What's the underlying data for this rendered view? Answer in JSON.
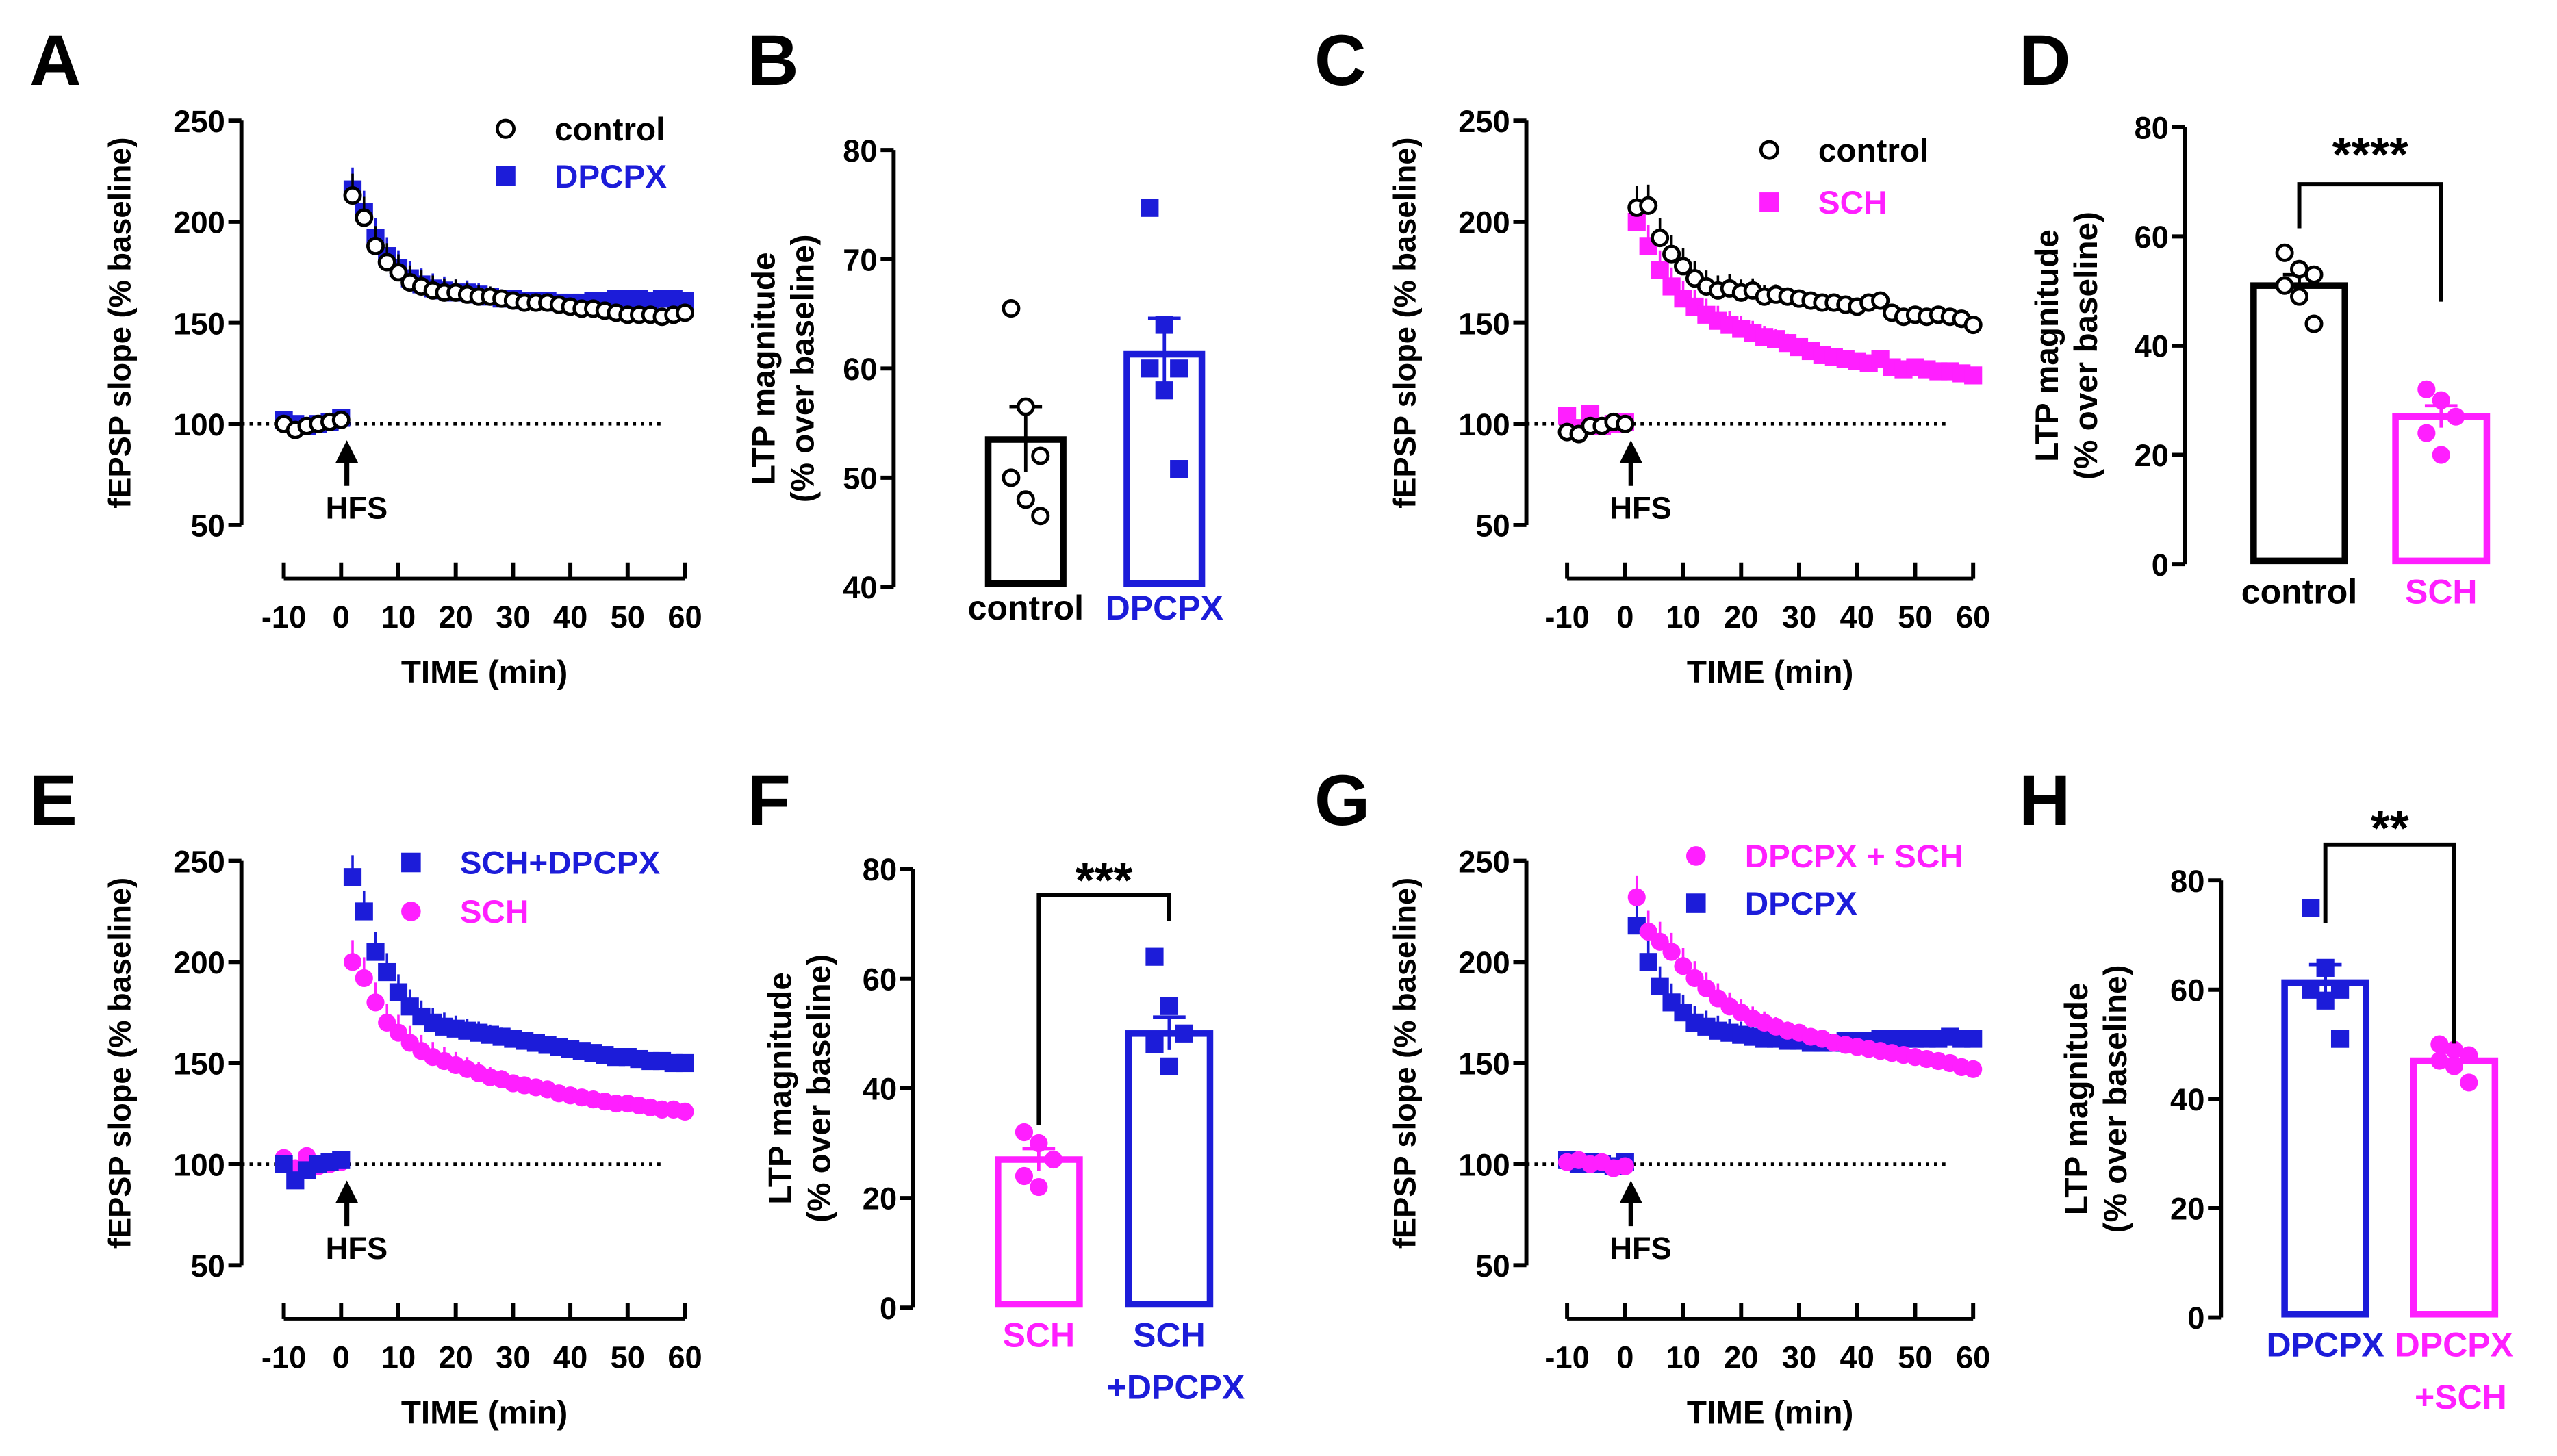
{
  "colors": {
    "black": "#000000",
    "blue": "#1c1cd9",
    "magenta": "#ff1fff"
  },
  "chart_data": [
    {
      "panel": "A",
      "type": "scatter",
      "ylabel": "fEPSP slope (% baseline)",
      "xlabel": "TIME (min)",
      "ylim": [
        50,
        250
      ],
      "yticks": [
        50,
        100,
        150,
        200,
        250
      ],
      "xlim": [
        -10,
        60
      ],
      "xticks": [
        -10,
        0,
        10,
        20,
        30,
        40,
        50,
        60
      ],
      "baseline": 100,
      "annotation": "HFS",
      "legend_position": "top-right",
      "x": [
        -10,
        -8,
        -6,
        -4,
        -2,
        0,
        2,
        4,
        6,
        8,
        10,
        12,
        14,
        16,
        18,
        20,
        22,
        24,
        26,
        28,
        30,
        32,
        34,
        36,
        38,
        40,
        42,
        44,
        46,
        48,
        50,
        52,
        54,
        56,
        58,
        60
      ],
      "series": [
        {
          "name": "control",
          "color": "black",
          "marker": "open-circle",
          "values": [
            100,
            97,
            99,
            100,
            101,
            102,
            213,
            202,
            188,
            180,
            175,
            170,
            168,
            166,
            165,
            165,
            164,
            163,
            163,
            162,
            161,
            160,
            160,
            160,
            159,
            158,
            157,
            157,
            156,
            155,
            154,
            154,
            154,
            153,
            154,
            155
          ]
        },
        {
          "name": "DPCPX",
          "color": "blue",
          "marker": "square",
          "values": [
            102,
            100,
            99,
            100,
            101,
            103,
            216,
            205,
            192,
            183,
            177,
            172,
            169,
            167,
            166,
            165,
            165,
            164,
            163,
            162,
            162,
            161,
            161,
            161,
            160,
            160,
            160,
            161,
            161,
            162,
            162,
            162,
            161,
            162,
            162,
            161
          ]
        }
      ]
    },
    {
      "panel": "B",
      "type": "bar",
      "ylabel": [
        "LTP magnitude",
        "(% over baseline)"
      ],
      "ylim": [
        40,
        80
      ],
      "yticks": [
        40,
        50,
        60,
        70,
        80
      ],
      "significance": "",
      "bars": [
        {
          "label": [
            "control"
          ],
          "color": "black",
          "marker": "open-circle",
          "mean": 53.5,
          "sem": 3.0,
          "points": [
            65.5,
            56.5,
            52,
            50,
            48,
            46.5
          ]
        },
        {
          "label": [
            "DPCPX"
          ],
          "color": "blue",
          "marker": "square",
          "mean": 61.3,
          "sem": 3.3,
          "points": [
            74.7,
            64,
            60,
            60,
            58,
            50.8
          ]
        }
      ]
    },
    {
      "panel": "C",
      "type": "scatter",
      "ylabel": "fEPSP slope (% baseline)",
      "xlabel": "TIME (min)",
      "ylim": [
        50,
        250
      ],
      "yticks": [
        50,
        100,
        150,
        200,
        250
      ],
      "xlim": [
        -10,
        60
      ],
      "xticks": [
        -10,
        0,
        10,
        20,
        30,
        40,
        50,
        60
      ],
      "baseline": 100,
      "annotation": "HFS",
      "legend_position": "top-right",
      "x": [
        -10,
        -8,
        -6,
        -4,
        -2,
        0,
        2,
        4,
        6,
        8,
        10,
        12,
        14,
        16,
        18,
        20,
        22,
        24,
        26,
        28,
        30,
        32,
        34,
        36,
        38,
        40,
        42,
        44,
        46,
        48,
        50,
        52,
        54,
        56,
        58,
        60
      ],
      "series": [
        {
          "name": "control",
          "color": "black",
          "marker": "open-circle",
          "values": [
            96,
            95,
            99,
            99,
            101,
            100,
            207,
            208,
            192,
            184,
            178,
            172,
            168,
            166,
            167,
            165,
            166,
            163,
            164,
            163,
            162,
            161,
            160,
            160,
            159,
            158,
            160,
            161,
            155,
            153,
            154,
            153,
            154,
            153,
            152,
            149
          ]
        },
        {
          "name": "SCH",
          "color": "magenta",
          "marker": "square",
          "values": [
            104,
            98,
            105,
            99,
            100,
            101,
            200,
            188,
            176,
            168,
            162,
            158,
            154,
            151,
            149,
            147,
            145,
            143,
            142,
            140,
            138,
            136,
            134,
            133,
            132,
            131,
            130,
            132,
            128,
            127,
            128,
            127,
            126,
            126,
            125,
            124
          ]
        }
      ]
    },
    {
      "panel": "D",
      "type": "bar",
      "ylabel": [
        "LTP magnitude",
        "(% over baseline)"
      ],
      "ylim": [
        0,
        80
      ],
      "yticks": [
        0,
        20,
        40,
        60,
        80
      ],
      "significance": "****",
      "bars": [
        {
          "label": [
            "control"
          ],
          "color": "black",
          "marker": "open-circle",
          "mean": 51,
          "sem": 2,
          "points": [
            57,
            54,
            53,
            51,
            49,
            44
          ]
        },
        {
          "label": [
            "SCH"
          ],
          "color": "magenta",
          "marker": "circle",
          "mean": 27,
          "sem": 2,
          "points": [
            32,
            30,
            27,
            24,
            20
          ]
        }
      ]
    },
    {
      "panel": "E",
      "type": "scatter",
      "ylabel": "fEPSP slope (% baseline)",
      "xlabel": "TIME (min)",
      "ylim": [
        50,
        250
      ],
      "yticks": [
        50,
        100,
        150,
        200,
        250
      ],
      "xlim": [
        -10,
        60
      ],
      "xticks": [
        -10,
        0,
        10,
        20,
        30,
        40,
        50,
        60
      ],
      "baseline": 100,
      "annotation": "HFS",
      "legend_position": "top-right",
      "x": [
        -10,
        -8,
        -6,
        -4,
        -2,
        0,
        2,
        4,
        6,
        8,
        10,
        12,
        14,
        16,
        18,
        20,
        22,
        24,
        26,
        28,
        30,
        32,
        34,
        36,
        38,
        40,
        42,
        44,
        46,
        48,
        50,
        52,
        54,
        56,
        58,
        60
      ],
      "series": [
        {
          "name": "SCH+DPCPX",
          "color": "blue",
          "marker": "square",
          "values": [
            100,
            92,
            97,
            100,
            101,
            102,
            242,
            225,
            205,
            195,
            185,
            178,
            173,
            170,
            168,
            167,
            166,
            165,
            164,
            163,
            162,
            161,
            160,
            159,
            158,
            157,
            156,
            155,
            154,
            153,
            153,
            152,
            151,
            151,
            150,
            150
          ]
        },
        {
          "name": "SCH",
          "color": "magenta",
          "marker": "circle",
          "values": [
            103,
            98,
            104,
            99,
            100,
            101,
            200,
            192,
            180,
            170,
            165,
            160,
            156,
            153,
            151,
            149,
            147,
            145,
            143,
            142,
            140,
            139,
            138,
            137,
            135,
            134,
            133,
            132,
            131,
            130,
            130,
            129,
            128,
            127,
            127,
            126
          ]
        }
      ]
    },
    {
      "panel": "F",
      "type": "bar",
      "ylabel": [
        "LTP magnitude",
        "(% over baseline)"
      ],
      "ylim": [
        0,
        80
      ],
      "yticks": [
        0,
        20,
        40,
        60,
        80
      ],
      "significance": "***",
      "bars": [
        {
          "label": [
            "SCH"
          ],
          "color": "magenta",
          "marker": "circle",
          "mean": 27,
          "sem": 2,
          "points": [
            32,
            30,
            27,
            24,
            22
          ]
        },
        {
          "label": [
            "SCH",
            "+DPCPX"
          ],
          "color": "blue",
          "marker": "square",
          "mean": 50,
          "sem": 3,
          "points": [
            64,
            55,
            50,
            48,
            44
          ]
        }
      ]
    },
    {
      "panel": "G",
      "type": "scatter",
      "ylabel": "fEPSP slope (% baseline)",
      "xlabel": "TIME (min)",
      "ylim": [
        50,
        250
      ],
      "yticks": [
        50,
        100,
        150,
        200,
        250
      ],
      "xlim": [
        -10,
        60
      ],
      "xticks": [
        -10,
        0,
        10,
        20,
        30,
        40,
        50,
        60
      ],
      "baseline": 100,
      "annotation": "HFS",
      "legend_position": "top-right",
      "x": [
        -10,
        -8,
        -6,
        -4,
        -2,
        0,
        2,
        4,
        6,
        8,
        10,
        12,
        14,
        16,
        18,
        20,
        22,
        24,
        26,
        28,
        30,
        32,
        34,
        36,
        38,
        40,
        42,
        44,
        46,
        48,
        50,
        52,
        54,
        56,
        58,
        60
      ],
      "series": [
        {
          "name": "DPCPX + SCH",
          "color": "magenta",
          "marker": "circle",
          "values": [
            101,
            102,
            100,
            101,
            98,
            99,
            232,
            215,
            210,
            205,
            198,
            192,
            187,
            182,
            178,
            175,
            172,
            170,
            168,
            166,
            165,
            163,
            162,
            160,
            159,
            158,
            157,
            156,
            155,
            154,
            153,
            152,
            151,
            150,
            148,
            147
          ]
        },
        {
          "name": "DPCPX",
          "color": "blue",
          "marker": "square",
          "values": [
            102,
            100,
            101,
            100,
            99,
            101,
            218,
            200,
            188,
            180,
            175,
            170,
            168,
            166,
            165,
            164,
            163,
            162,
            162,
            161,
            161,
            160,
            160,
            160,
            161,
            161,
            161,
            162,
            162,
            162,
            162,
            162,
            162,
            163,
            162,
            162
          ]
        }
      ]
    },
    {
      "panel": "H",
      "type": "bar",
      "ylabel": [
        "LTP magnitude",
        "(% over baseline)"
      ],
      "ylim": [
        0,
        80
      ],
      "yticks": [
        0,
        20,
        40,
        60,
        80
      ],
      "significance": "**",
      "bars": [
        {
          "label": [
            "DPCPX"
          ],
          "color": "blue",
          "marker": "square",
          "mean": 61.3,
          "sem": 3.3,
          "points": [
            75,
            64,
            60,
            60,
            58,
            51
          ]
        },
        {
          "label": [
            "DPCPX",
            "+SCH"
          ],
          "color": "magenta",
          "marker": "circle",
          "mean": 47,
          "sem": 1.5,
          "points": [
            50,
            49,
            48,
            47,
            46,
            43
          ]
        }
      ]
    }
  ]
}
